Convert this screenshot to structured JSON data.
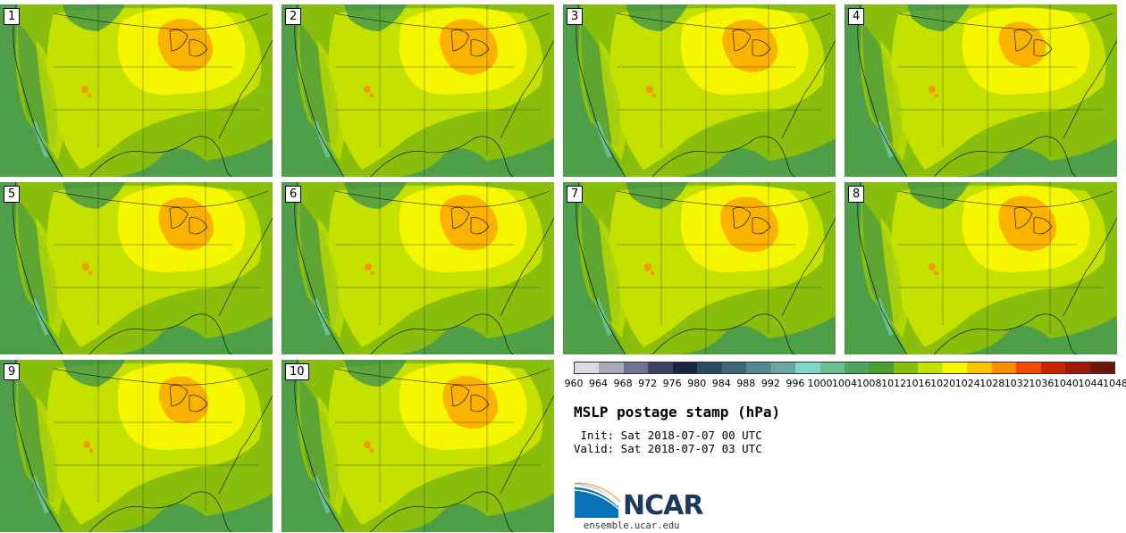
{
  "panels": [
    {
      "label": "1"
    },
    {
      "label": "2"
    },
    {
      "label": "3"
    },
    {
      "label": "4"
    },
    {
      "label": "5"
    },
    {
      "label": "6"
    },
    {
      "label": "7"
    },
    {
      "label": "8"
    },
    {
      "label": "9"
    },
    {
      "label": "10"
    }
  ],
  "colorbar": {
    "ticks": [
      "960",
      "964",
      "968",
      "972",
      "976",
      "980",
      "984",
      "988",
      "992",
      "996",
      "1000",
      "1004",
      "1008",
      "1012",
      "1016",
      "1020",
      "1024",
      "1028",
      "1032",
      "1036",
      "1040",
      "1044",
      "1048"
    ],
    "colors": [
      "#dcdde3",
      "#a7a9b9",
      "#70738f",
      "#3c4463",
      "#182540",
      "#2b4a63",
      "#3d6678",
      "#56878e",
      "#6ba7a6",
      "#84d6c8",
      "#6cc08f",
      "#4ea55b",
      "#48a033",
      "#89bf0c",
      "#c4e100",
      "#f5f600",
      "#fcc300",
      "#fd8a00",
      "#ef4a00",
      "#c72400",
      "#9b1a08",
      "#6e150a"
    ],
    "unit": "hPa"
  },
  "info": {
    "title": "MSLP postage stamp (hPa)",
    "init": " Init: Sat 2018-07-07 00 UTC",
    "valid": "Valid: Sat 2018-07-07 03 UTC"
  },
  "logo": {
    "text": "NCAR",
    "website": "ensemble.ucar.edu"
  },
  "colors": {
    "ocean": "#4f9f49",
    "green_mid": "#89bf0c",
    "yellow_green": "#c4e100",
    "yellow": "#f5f600",
    "orange": "#fcb300",
    "dark_orange": "#fd8a00",
    "dark_green": "#3b8f50",
    "teal": "#6cc08f"
  }
}
